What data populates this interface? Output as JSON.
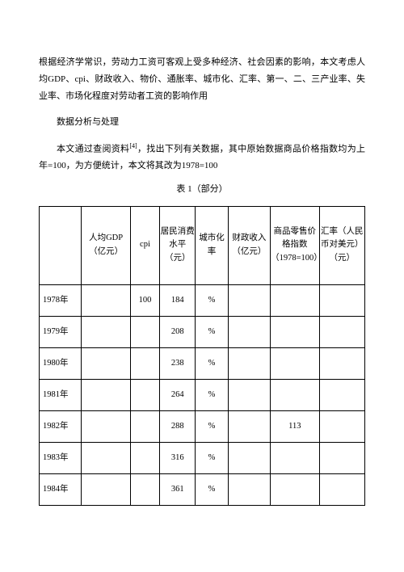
{
  "paragraphs": {
    "p1": "根据经济学常识，劳动力工资可客观上受多种经济、社会因素的影响，本文考虑人均GDP、cpi、财政收入、物价、通胀率、城市化、汇率、第一、二、三产业率、失业率、市场化程度对劳动者工资的影响作用",
    "p2": "数据分析与处理",
    "p3_before_ref": "本文通过查阅资料",
    "p3_ref": "[4]",
    "p3_after_ref": "，找出下列有关数据，其中原始数据商品价格指数均为上年=100，为方便统计，本文将其改为1978=100",
    "table_caption": "表 1（部分）"
  },
  "table": {
    "columns": [
      {
        "label": "",
        "width": "13%"
      },
      {
        "label": "人均GDP（亿元）",
        "width": "15%"
      },
      {
        "label": "cpi",
        "width": "9%"
      },
      {
        "label": "居民消费水平（元）",
        "width": "11%"
      },
      {
        "label": "城市化率",
        "width": "10%"
      },
      {
        "label": "财政收入（亿元）",
        "width": "13%"
      },
      {
        "label": "商品零售价格指数（1978=100）",
        "width": "15%"
      },
      {
        "label": "汇率（人民币对美元）（元）",
        "width": "14%"
      }
    ],
    "rows": [
      {
        "year": "1978年",
        "gdp": "",
        "cpi": "100",
        "cons": "184",
        "urban": "%",
        "fisc": "",
        "rpi": "",
        "fx": ""
      },
      {
        "year": "1979年",
        "gdp": "",
        "cpi": "",
        "cons": "208",
        "urban": "%",
        "fisc": "",
        "rpi": "",
        "fx": ""
      },
      {
        "year": "1980年",
        "gdp": "",
        "cpi": "",
        "cons": "238",
        "urban": "%",
        "fisc": "",
        "rpi": "",
        "fx": ""
      },
      {
        "year": "1981年",
        "gdp": "",
        "cpi": "",
        "cons": "264",
        "urban": "%",
        "fisc": "",
        "rpi": "",
        "fx": ""
      },
      {
        "year": "1982年",
        "gdp": "",
        "cpi": "",
        "cons": "288",
        "urban": "%",
        "fisc": "",
        "rpi": "113",
        "fx": ""
      },
      {
        "year": "1983年",
        "gdp": "",
        "cpi": "",
        "cons": "316",
        "urban": "%",
        "fisc": "",
        "rpi": "",
        "fx": ""
      },
      {
        "year": "1984年",
        "gdp": "",
        "cpi": "",
        "cons": "361",
        "urban": "%",
        "fisc": "",
        "rpi": "",
        "fx": ""
      }
    ]
  }
}
